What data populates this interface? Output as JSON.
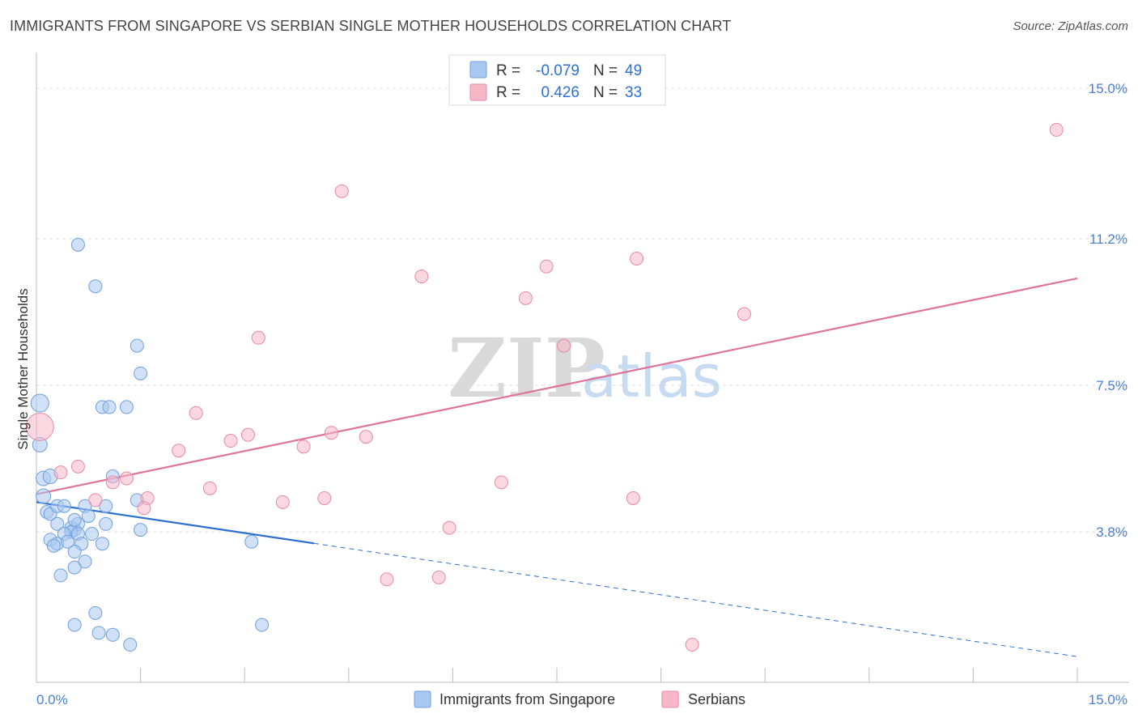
{
  "header": {
    "title": "IMMIGRANTS FROM SINGAPORE VS SERBIAN SINGLE MOTHER HOUSEHOLDS CORRELATION CHART",
    "source": "Source: ZipAtlas.com"
  },
  "watermark": {
    "zip": "ZIP",
    "atlas": "atlas"
  },
  "legend_box": {
    "rows": [
      {
        "r_label": "R =",
        "r_value": "-0.079",
        "n_label": "N =",
        "n_value": "49",
        "color": "#a9c8f0"
      },
      {
        "r_label": "R =",
        "r_value": "0.426",
        "n_label": "N =",
        "n_value": "33",
        "color": "#f6b7c8"
      }
    ]
  },
  "bottom_legend": {
    "items": [
      {
        "label": "Immigrants from Singapore",
        "color": "#a9c8f0"
      },
      {
        "label": "Serbians",
        "color": "#f6b7c8"
      }
    ]
  },
  "chart_data": {
    "type": "scatter",
    "title": "IMMIGRANTS FROM SINGAPORE VS SERBIAN SINGLE MOTHER HOUSEHOLDS CORRELATION CHART",
    "xlabel": "",
    "ylabel": "Single Mother Households",
    "xlim": [
      0,
      15
    ],
    "ylim": [
      0,
      15.9
    ],
    "x_tick_labels": [
      "0.0%",
      "15.0%"
    ],
    "y_ticks": [
      3.8,
      7.5,
      11.2,
      15.0
    ],
    "y_tick_labels": [
      "3.8%",
      "7.5%",
      "11.2%",
      "15.0%"
    ],
    "grid": true,
    "series": [
      {
        "name": "Immigrants from Singapore",
        "color": "#a9c8f0",
        "stroke": "#6f9fdd",
        "trend": {
          "x0": 0.0,
          "y0": 4.55,
          "x1": 15.0,
          "y1": 0.65,
          "solid_until": 4.0
        },
        "trend_color": "#2d6fd0",
        "points": [
          [
            0.05,
            7.05,
            11
          ],
          [
            0.05,
            6.0,
            9
          ],
          [
            0.1,
            5.15,
            9
          ],
          [
            0.2,
            5.2,
            9
          ],
          [
            0.1,
            4.7,
            9
          ],
          [
            0.15,
            4.3,
            8
          ],
          [
            0.2,
            4.25,
            8
          ],
          [
            0.3,
            4.45,
            8
          ],
          [
            0.7,
            4.45,
            8
          ],
          [
            1.0,
            4.45,
            8
          ],
          [
            0.3,
            4.0,
            8
          ],
          [
            0.5,
            3.9,
            8
          ],
          [
            0.55,
            3.85,
            8
          ],
          [
            0.6,
            4.0,
            8
          ],
          [
            0.75,
            4.2,
            8
          ],
          [
            0.5,
            3.8,
            8
          ],
          [
            0.4,
            3.75,
            8
          ],
          [
            0.6,
            3.75,
            8
          ],
          [
            0.8,
            3.75,
            8
          ],
          [
            0.2,
            3.6,
            8
          ],
          [
            0.3,
            3.5,
            8
          ],
          [
            0.65,
            3.5,
            8
          ],
          [
            0.25,
            3.45,
            8
          ],
          [
            0.55,
            3.3,
            8
          ],
          [
            0.7,
            3.05,
            8
          ],
          [
            0.95,
            3.5,
            8
          ],
          [
            1.0,
            4.0,
            8
          ],
          [
            0.35,
            2.7,
            8
          ],
          [
            0.55,
            2.9,
            8
          ],
          [
            1.5,
            3.85,
            8
          ],
          [
            1.45,
            4.6,
            8
          ],
          [
            1.1,
            5.2,
            8
          ],
          [
            0.6,
            11.05,
            8
          ],
          [
            0.85,
            10.0,
            8
          ],
          [
            1.45,
            8.5,
            8
          ],
          [
            1.5,
            7.8,
            8
          ],
          [
            0.95,
            6.95,
            8
          ],
          [
            1.05,
            6.95,
            8
          ],
          [
            1.3,
            6.95,
            8
          ],
          [
            3.1,
            3.55,
            8
          ],
          [
            0.85,
            1.75,
            8
          ],
          [
            0.55,
            1.45,
            8
          ],
          [
            0.9,
            1.25,
            8
          ],
          [
            1.1,
            1.2,
            8
          ],
          [
            1.35,
            0.95,
            8
          ],
          [
            3.25,
            1.45,
            8
          ],
          [
            0.4,
            4.45,
            8
          ],
          [
            0.55,
            4.1,
            8
          ],
          [
            0.45,
            3.55,
            8
          ]
        ]
      },
      {
        "name": "Serbians",
        "color": "#f6b7c8",
        "stroke": "#e58aa5",
        "trend": {
          "x0": 0.0,
          "y0": 4.75,
          "x1": 15.0,
          "y1": 10.2,
          "solid_until": 15.0
        },
        "trend_color": "#e07399",
        "points": [
          [
            0.05,
            6.45,
            17
          ],
          [
            0.35,
            5.3,
            8
          ],
          [
            0.6,
            5.45,
            8
          ],
          [
            1.1,
            5.05,
            8
          ],
          [
            1.3,
            5.15,
            8
          ],
          [
            0.85,
            4.6,
            8
          ],
          [
            1.6,
            4.65,
            8
          ],
          [
            1.55,
            4.4,
            8
          ],
          [
            2.05,
            5.85,
            8
          ],
          [
            2.3,
            6.8,
            8
          ],
          [
            2.5,
            4.9,
            8
          ],
          [
            2.8,
            6.1,
            8
          ],
          [
            3.05,
            6.25,
            8
          ],
          [
            3.2,
            8.7,
            8
          ],
          [
            3.55,
            4.55,
            8
          ],
          [
            3.85,
            5.95,
            8
          ],
          [
            4.15,
            4.65,
            8
          ],
          [
            4.25,
            6.3,
            8
          ],
          [
            4.4,
            12.4,
            8
          ],
          [
            4.75,
            6.2,
            8
          ],
          [
            5.05,
            2.6,
            8
          ],
          [
            5.55,
            10.25,
            8
          ],
          [
            5.8,
            2.65,
            8
          ],
          [
            5.95,
            3.9,
            8
          ],
          [
            6.7,
            5.05,
            8
          ],
          [
            7.05,
            9.7,
            8
          ],
          [
            7.35,
            10.5,
            8
          ],
          [
            7.6,
            8.5,
            8
          ],
          [
            8.65,
            10.7,
            8
          ],
          [
            8.6,
            4.65,
            8
          ],
          [
            9.45,
            0.95,
            8
          ],
          [
            10.2,
            9.3,
            8
          ],
          [
            14.7,
            13.95,
            8
          ]
        ]
      }
    ]
  }
}
